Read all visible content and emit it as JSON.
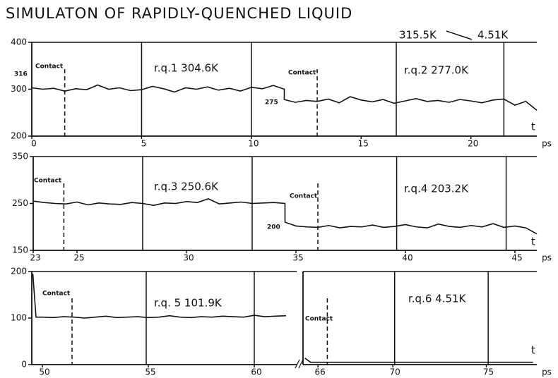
{
  "title": "SIMULATON OF RAPIDLY-QUENCHED LIQUID",
  "chart_data": [
    {
      "type": "line",
      "xlim": [
        0,
        23
      ],
      "ylim": [
        200,
        400
      ],
      "xticks": [
        0,
        5,
        10,
        15,
        20
      ],
      "yticks": [
        200,
        300,
        400
      ],
      "x_label": "ps",
      "x": [
        0,
        0.5,
        1,
        1.5,
        2,
        2.5,
        3,
        3.5,
        4,
        4.5,
        5,
        5.5,
        6,
        6.5,
        7,
        7.5,
        8,
        8.5,
        9,
        9.5,
        10,
        10.5,
        11,
        11.5,
        11.5,
        12,
        12.5,
        13,
        13.5,
        14,
        14.5,
        15,
        15.5,
        16,
        16.5,
        17,
        17.5,
        18,
        18.5,
        19,
        19.5,
        20,
        20.5,
        21,
        21.5,
        22,
        22.5,
        23
      ],
      "values": [
        303,
        300,
        302,
        296,
        301,
        299,
        309,
        300,
        303,
        297,
        299,
        306,
        301,
        294,
        303,
        300,
        305,
        298,
        302,
        296,
        304,
        301,
        308,
        300,
        278,
        272,
        276,
        274,
        279,
        271,
        284,
        277,
        273,
        278,
        270,
        275,
        280,
        274,
        276,
        272,
        278,
        275,
        271,
        277,
        279,
        266,
        274,
        255
      ],
      "dividers": [
        5.0,
        10.0,
        16.6,
        21.5
      ],
      "contacts": [
        1.5,
        13.0
      ],
      "annotations": [
        "Contact",
        "Contact'",
        "r.q.1  304.6K",
        "r.q.2  277.0K",
        "315.5K",
        "4.51K",
        "316",
        "275",
        "t"
      ]
    },
    {
      "type": "line",
      "xlim": [
        23,
        46
      ],
      "ylim": [
        150,
        350
      ],
      "xticks": [
        23,
        25,
        30,
        35,
        40,
        45
      ],
      "yticks": [
        150,
        250,
        350
      ],
      "x_label": "ps",
      "x": [
        23,
        23.5,
        24,
        24.5,
        25,
        25.5,
        26,
        26.5,
        27,
        27.5,
        28,
        28.5,
        29,
        29.5,
        30,
        30.5,
        31,
        31.5,
        32,
        32.5,
        33,
        33.5,
        34,
        34.5,
        34.5,
        35,
        35.5,
        36,
        36.5,
        37,
        37.5,
        38,
        38.5,
        39,
        39.5,
        40,
        40.5,
        41,
        41.5,
        42,
        42.5,
        43,
        43.5,
        44,
        44.5,
        45,
        45.5,
        46
      ],
      "values": [
        255,
        252,
        250,
        249,
        253,
        247,
        251,
        249,
        248,
        252,
        250,
        246,
        251,
        250,
        254,
        252,
        260,
        249,
        251,
        253,
        250,
        251,
        252,
        250,
        210,
        202,
        200,
        199,
        203,
        198,
        201,
        200,
        204,
        199,
        201,
        205,
        200,
        198,
        206,
        201,
        199,
        203,
        200,
        207,
        199,
        202,
        198,
        185
      ],
      "dividers": [
        28.0,
        33.0,
        39.6,
        44.6
      ],
      "contacts": [
        24.4,
        36.0
      ],
      "annotations": [
        "Contact",
        "Contact",
        "r.q.3  250.6K",
        "r.q.4  203.2K",
        "200",
        "t"
      ]
    },
    {
      "type": "line",
      "xlim": [
        49.5,
        62
      ],
      "ylim": [
        0,
        200
      ],
      "xticks": [
        50,
        55,
        60
      ],
      "yticks": [
        0,
        100,
        200
      ],
      "x": [
        49.55,
        49.7,
        50,
        50.5,
        51,
        51.5,
        52,
        52.5,
        53,
        53.5,
        54,
        54.5,
        55,
        55.5,
        56,
        56.5,
        57,
        57.5,
        58,
        58.5,
        59,
        59.5,
        60,
        60.5,
        61,
        61.5
      ],
      "values": [
        195,
        102,
        102,
        101,
        103,
        102,
        100,
        102,
        104,
        101,
        102,
        103,
        101,
        102,
        105,
        102,
        101,
        103,
        102,
        104,
        103,
        102,
        106,
        103,
        104,
        105
      ],
      "dividers": [
        54.9,
        60.0
      ],
      "contacts": [
        51.4
      ],
      "annotations": [
        "Contact",
        "r.q. 5  101.9K"
      ]
    },
    {
      "type": "line",
      "xlim": [
        65.2,
        77.7
      ],
      "ylim": [
        0,
        200
      ],
      "xticks": [
        66,
        70,
        75
      ],
      "x_label": "ps",
      "x": [
        65.3,
        65.6,
        66,
        70,
        75,
        77.5
      ],
      "values": [
        14,
        5,
        5,
        5,
        5,
        5
      ],
      "dividers": [
        70.1,
        75.1
      ],
      "contacts": [
        66.5
      ],
      "annotations": [
        "Contact",
        "r.q.6    4.51K",
        "t"
      ]
    }
  ]
}
